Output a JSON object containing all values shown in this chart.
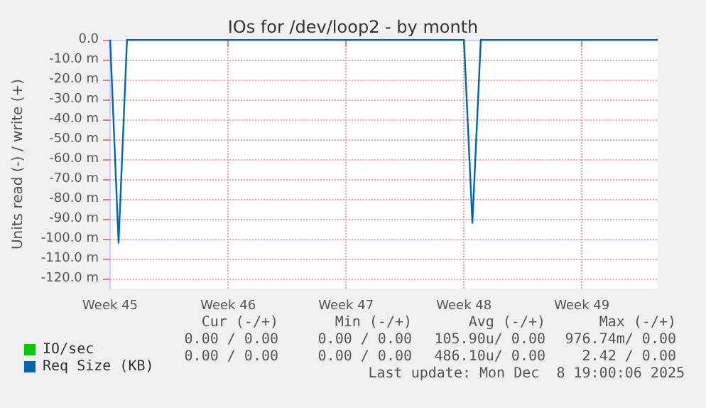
{
  "chart_data": {
    "type": "line",
    "title": "IOs for /dev/loop2 - by month",
    "ylabel": "Units read (-) / write (+)",
    "categories": [
      "Week 45",
      null,
      null,
      null,
      null,
      null,
      null,
      null,
      null,
      null,
      null,
      null,
      null,
      null,
      "Week 46",
      null,
      null,
      null,
      null,
      null,
      null,
      null,
      null,
      null,
      null,
      null,
      null,
      null,
      "Week 47",
      null,
      null,
      null,
      null,
      null,
      null,
      null,
      null,
      null,
      null,
      null,
      null,
      null,
      "Week 48",
      null,
      null,
      null,
      null,
      null,
      null,
      null,
      null,
      null,
      null,
      null,
      null,
      null,
      "Week 49",
      null,
      null,
      null,
      null,
      null,
      null,
      null,
      null,
      null
    ],
    "ylim": [
      -125,
      0
    ],
    "yticks": [
      {
        "value": 0,
        "label": "0.0"
      },
      {
        "value": -10,
        "label": "-10.0 m"
      },
      {
        "value": -20,
        "label": "-20.0 m"
      },
      {
        "value": -30,
        "label": "-30.0 m"
      },
      {
        "value": -40,
        "label": "-40.0 m"
      },
      {
        "value": -50,
        "label": "-50.0 m"
      },
      {
        "value": -60,
        "label": "-60.0 m"
      },
      {
        "value": -70,
        "label": "-70.0 m"
      },
      {
        "value": -80,
        "label": "-80.0 m"
      },
      {
        "value": -90,
        "label": "-90.0 m"
      },
      {
        "value": -100,
        "label": "-100.0 m"
      },
      {
        "value": -110,
        "label": "-110.0 m"
      },
      {
        "value": -120,
        "label": "-120.0 m"
      }
    ],
    "series": [
      {
        "name": "IO/sec",
        "color": "#00cc00",
        "values": [
          null,
          null,
          null,
          null,
          null,
          null,
          null,
          null,
          null,
          null,
          null,
          null,
          null,
          null,
          null,
          null,
          null,
          null,
          null,
          null,
          null,
          null,
          null,
          null,
          null,
          null,
          null,
          null,
          null,
          null,
          null,
          null,
          null,
          null,
          null,
          null,
          null,
          null,
          null,
          null,
          null,
          null,
          null,
          null,
          null,
          null,
          null,
          null,
          null,
          null,
          null,
          null,
          null,
          null,
          null,
          null,
          null,
          null,
          null,
          null,
          null,
          null,
          null,
          null,
          null,
          null
        ]
      },
      {
        "name": "Req Size (KB)",
        "color": "#0066b3",
        "values": [
          0,
          -102,
          0,
          0,
          0,
          0,
          0,
          0,
          0,
          0,
          0,
          0,
          0,
          0,
          0,
          0,
          0,
          0,
          0,
          0,
          0,
          0,
          0,
          0,
          0,
          0,
          0,
          0,
          0,
          0,
          0,
          0,
          0,
          0,
          0,
          0,
          0,
          0,
          0,
          0,
          0,
          0,
          0,
          -92,
          0,
          0,
          0,
          0,
          0,
          0,
          0,
          0,
          0,
          0,
          0,
          0,
          0,
          0,
          0,
          0,
          0,
          0,
          0,
          0,
          0,
          0
        ]
      }
    ],
    "grid": true,
    "legend": "bottom left",
    "marker": "none",
    "line_style": "solid",
    "annotations": [
      "Cur (-/+)",
      "Min (-/+)",
      "Avg (-/+)",
      "Max (-/+)",
      "0.00 / 0.00",
      "0.00 / 0.00",
      "105.90u/ 0.00",
      "976.74m/ 0.00",
      "0.00 / 0.00",
      "0.00 / 0.00",
      "486.10u/ 0.00",
      "2.42 / 0.00",
      "Last update: Mon Dec  8 19:00:06 2025"
    ]
  }
}
